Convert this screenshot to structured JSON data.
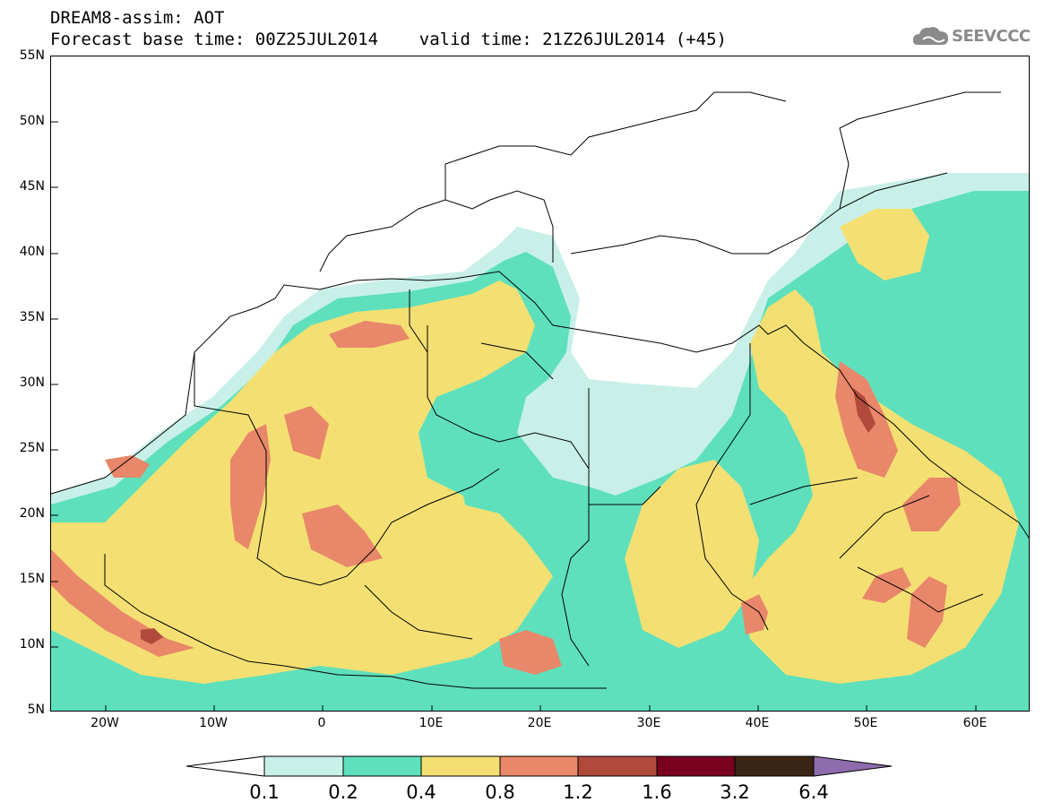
{
  "header": {
    "line1": "DREAM8-assim: AOT",
    "line2": "Forecast base time: 00Z25JUL2014    valid time: 21Z26JUL2014 (+45)"
  },
  "logo": {
    "text": "SEEVCCC",
    "icon": "cloud-icon"
  },
  "map": {
    "lat_labels": [
      "55N",
      "50N",
      "45N",
      "40N",
      "35N",
      "30N",
      "25N",
      "20N",
      "15N",
      "10N",
      "5N"
    ],
    "lon_labels": [
      "20W",
      "10W",
      "0",
      "10E",
      "20E",
      "30E",
      "40E",
      "50E",
      "60E"
    ],
    "lon_range": [
      -25,
      65
    ],
    "lat_range": [
      5,
      55
    ]
  },
  "colorbar": {
    "labels": [
      "0.1",
      "0.2",
      "0.4",
      "0.8",
      "1.2",
      "1.6",
      "3.2",
      "6.4"
    ],
    "colors": {
      "under": "#ffffff",
      "c1": "#c8f0e8",
      "c2": "#5ee0bc",
      "c3": "#f4e072",
      "c4": "#e8876a",
      "c5": "#b04a3a",
      "c6": "#7a0020",
      "c7": "#3a2414",
      "over": "#8e6cae"
    }
  }
}
